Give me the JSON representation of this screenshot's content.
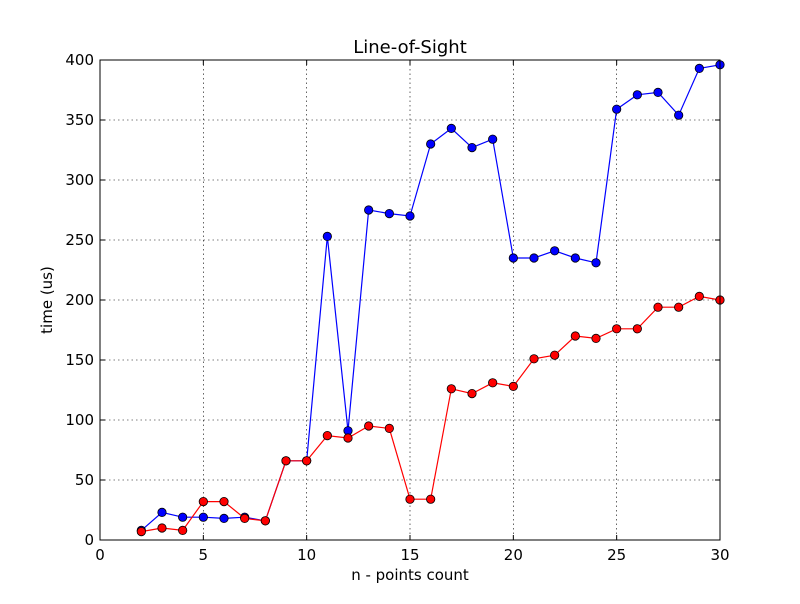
{
  "chart_data": {
    "type": "line",
    "title": "Line-of-Sight",
    "xlabel": "n - points count",
    "ylabel": "time (us)",
    "xlim": [
      0,
      30
    ],
    "ylim": [
      0,
      400
    ],
    "xticks": [
      0,
      5,
      10,
      15,
      20,
      25,
      30
    ],
    "yticks": [
      0,
      50,
      100,
      150,
      200,
      250,
      300,
      350,
      400
    ],
    "grid": true,
    "x": [
      2,
      3,
      4,
      5,
      6,
      7,
      8,
      9,
      10,
      11,
      12,
      13,
      14,
      15,
      16,
      17,
      18,
      19,
      20,
      21,
      22,
      23,
      24,
      25,
      26,
      27,
      28,
      29,
      30
    ],
    "series": [
      {
        "color": "#0000ff",
        "values": [
          8,
          23,
          19,
          19,
          18,
          19,
          16,
          66,
          66,
          253,
          91,
          275,
          272,
          270,
          330,
          343,
          327,
          334,
          235,
          235,
          241,
          235,
          231,
          359,
          371,
          373,
          354,
          393,
          396
        ]
      },
      {
        "color": "#ff0000",
        "values": [
          7,
          10,
          8,
          32,
          32,
          18,
          16,
          66,
          66,
          87,
          85,
          95,
          93,
          34,
          34,
          126,
          122,
          131,
          128,
          151,
          154,
          170,
          168,
          176,
          176,
          194,
          194,
          203,
          200
        ]
      }
    ]
  }
}
